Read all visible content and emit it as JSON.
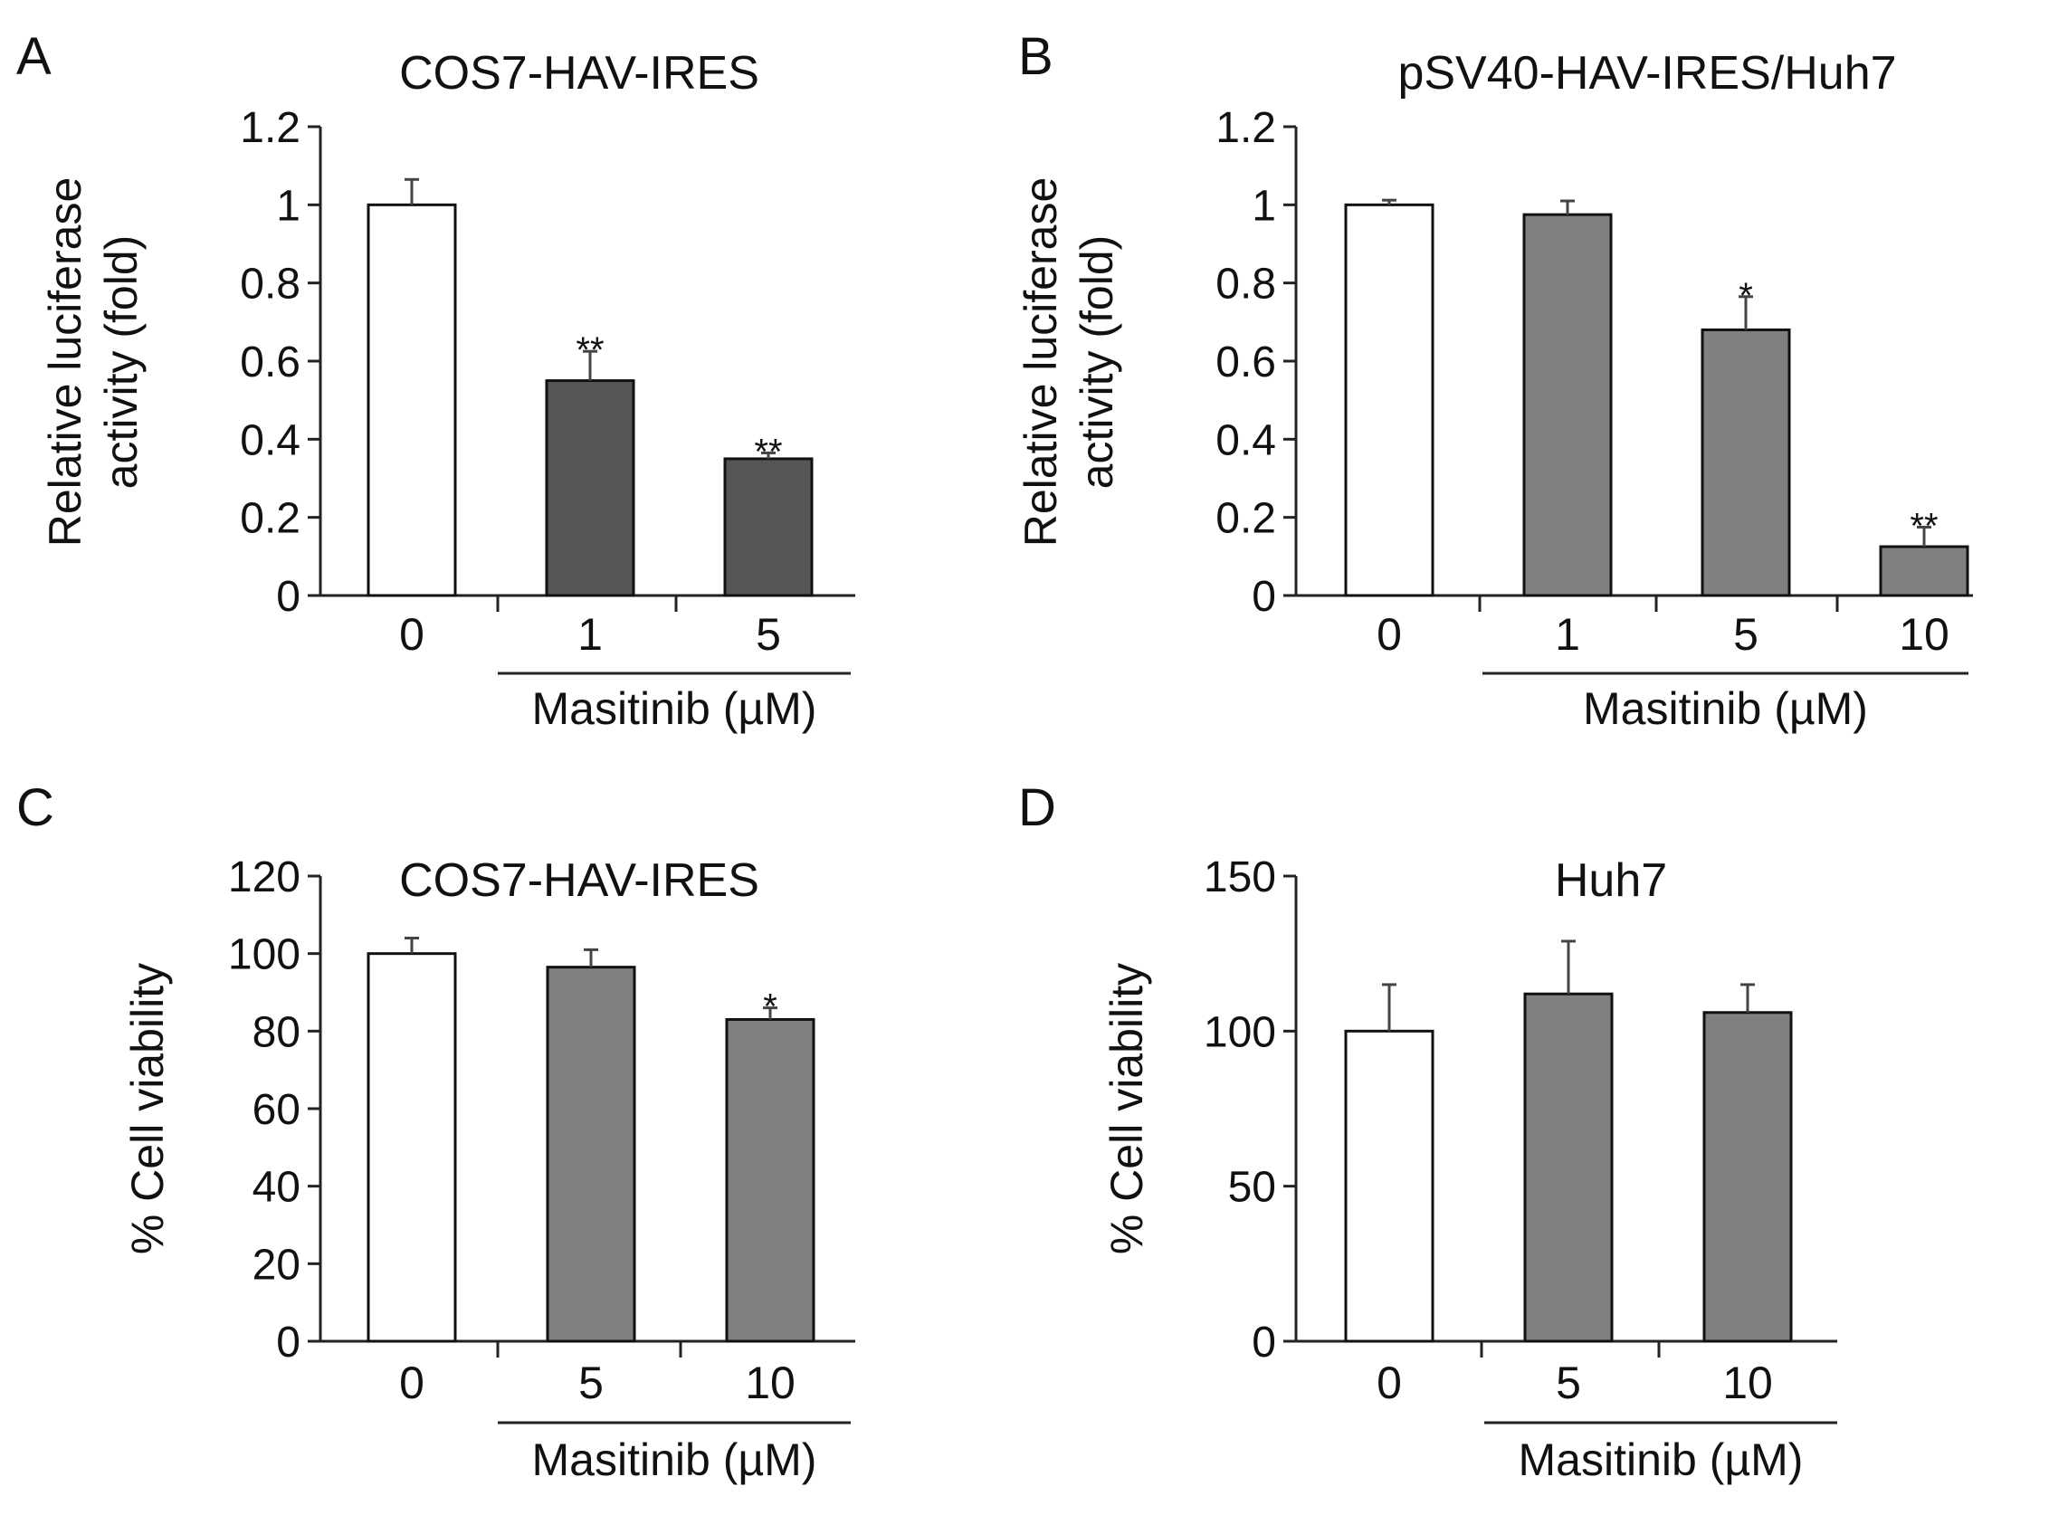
{
  "chart_data": [
    {
      "panel": "A",
      "type": "bar",
      "title": "COS7-HAV-IRES",
      "ylabel_lines": [
        "Relative luciferase",
        "activity (fold)"
      ],
      "xlabel": "Masitinib (µM)",
      "categories": [
        "0",
        "1",
        "5"
      ],
      "values": [
        1.0,
        0.55,
        0.35
      ],
      "errors": [
        0.065,
        0.075,
        0.015
      ],
      "annotations": [
        "",
        "**",
        "**"
      ],
      "colors": [
        "#ffffff",
        "#565656",
        "#565656"
      ],
      "ylim": [
        0,
        1.2
      ],
      "yticks": [
        0,
        0.2,
        0.4,
        0.6,
        0.8,
        1,
        1.2
      ],
      "ytick_labels": [
        "0",
        "0.2",
        "0.4",
        "0.6",
        "0.8",
        "1",
        "1.2"
      ]
    },
    {
      "panel": "B",
      "type": "bar",
      "title": "pSV40-HAV-IRES/Huh7",
      "ylabel_lines": [
        "Relative luciferase",
        "activity (fold)"
      ],
      "xlabel": "Masitinib (µM)",
      "categories": [
        "0",
        "1",
        "5",
        "10"
      ],
      "values": [
        1.0,
        0.975,
        0.68,
        0.125
      ],
      "errors": [
        0.012,
        0.035,
        0.085,
        0.05
      ],
      "annotations": [
        "",
        "",
        "*",
        "**"
      ],
      "colors": [
        "#ffffff",
        "#808080",
        "#808080",
        "#808080"
      ],
      "ylim": [
        0,
        1.2
      ],
      "yticks": [
        0,
        0.2,
        0.4,
        0.6,
        0.8,
        1,
        1.2
      ],
      "ytick_labels": [
        "0",
        "0.2",
        "0.4",
        "0.6",
        "0.8",
        "1",
        "1.2"
      ]
    },
    {
      "panel": "C",
      "type": "bar",
      "title": "COS7-HAV-IRES",
      "ylabel_lines": [
        "% Cell viability"
      ],
      "xlabel": "Masitinib (µM)",
      "categories": [
        "0",
        "5",
        "10"
      ],
      "values": [
        100,
        96.5,
        83
      ],
      "errors": [
        4,
        4.5,
        3
      ],
      "annotations": [
        "",
        "",
        "*"
      ],
      "colors": [
        "#ffffff",
        "#808080",
        "#808080"
      ],
      "ylim": [
        0,
        120
      ],
      "yticks": [
        0,
        20,
        40,
        60,
        80,
        100,
        120
      ],
      "ytick_labels": [
        "0",
        "20",
        "40",
        "60",
        "80",
        "100",
        "120"
      ]
    },
    {
      "panel": "D",
      "type": "bar",
      "title": "Huh7",
      "ylabel_lines": [
        "% Cell viability"
      ],
      "xlabel": "Masitinib (µM)",
      "categories": [
        "0",
        "5",
        "10"
      ],
      "values": [
        100,
        112,
        106
      ],
      "errors": [
        15,
        17,
        9
      ],
      "annotations": [
        "",
        "",
        ""
      ],
      "colors": [
        "#ffffff",
        "#808080",
        "#808080"
      ],
      "ylim": [
        0,
        150
      ],
      "yticks": [
        0,
        50,
        100,
        150
      ],
      "ytick_labels": [
        "0",
        "50",
        "100",
        "150"
      ]
    }
  ]
}
